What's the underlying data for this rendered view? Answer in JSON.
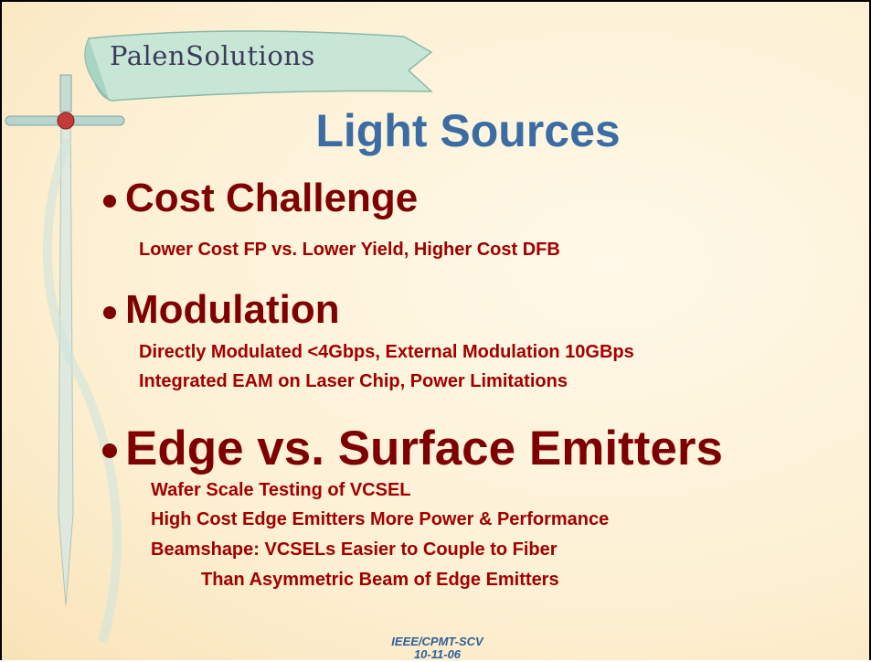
{
  "logo": "PalenSolutions",
  "title": "Light Sources",
  "bullets": [
    {
      "heading": "Cost Challenge",
      "items": [
        "Lower Cost FP vs. Lower Yield, Higher Cost DFB"
      ]
    },
    {
      "heading": "Modulation",
      "items": [
        "Directly Modulated <4Gbps, External Modulation 10GBps",
        "Integrated EAM on Laser Chip, Power Limitations"
      ]
    },
    {
      "heading": "Edge vs. Surface Emitters",
      "items": [
        "Wafer Scale Testing of VCSEL",
        "High Cost Edge Emitters More Power & Performance",
        "Beamshape: VCSELs Easier to Couple to Fiber",
        "Than Asymmetric Beam of Edge Emitters"
      ]
    }
  ],
  "footer": [
    "IEEE/CPMT-SCV",
    "10-11-06"
  ]
}
